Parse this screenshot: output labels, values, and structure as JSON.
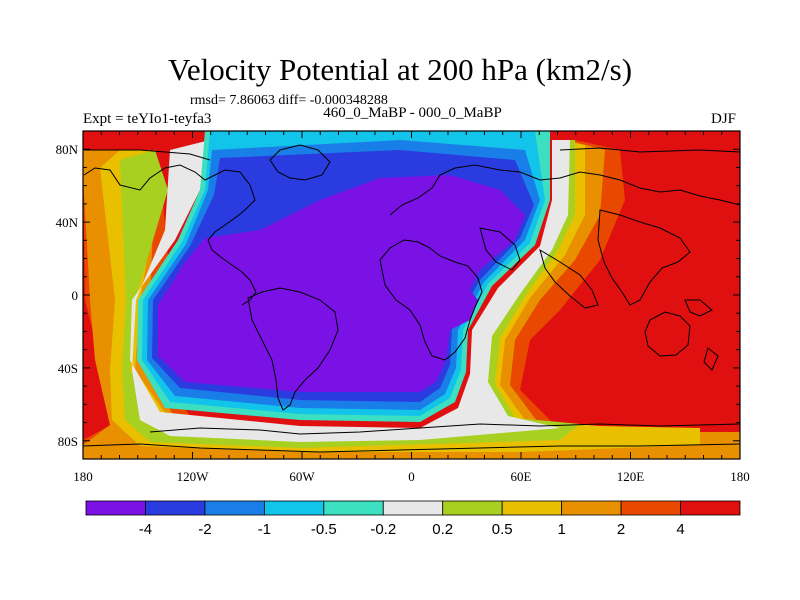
{
  "title": "Velocity Potential at 200 hPa (km2/s)",
  "stats": "rmsd= 7.86063 diff= -0.000348288",
  "expt": "Expt = teYIo1-teyfa3",
  "period": "460_0_MaBP - 000_0_MaBP",
  "season": "DJF",
  "map": {
    "lon_ticks": [
      "180",
      "120W",
      "60W",
      "0",
      "60E",
      "120E",
      "180"
    ],
    "lat_ticks": [
      "80N",
      "40N",
      "0",
      "40S",
      "80S"
    ]
  },
  "colorbar": {
    "colors": [
      "#7a12e6",
      "#2a3ce0",
      "#1a7ee8",
      "#12c4ea",
      "#3ce0c0",
      "#e8e8e8",
      "#a8d020",
      "#e8c000",
      "#e89000",
      "#e84800",
      "#e01010"
    ],
    "labels": [
      "-4",
      "-2",
      "-1",
      "-0.5",
      "-0.2",
      "0.2",
      "0.5",
      "1",
      "2",
      "4"
    ]
  }
}
